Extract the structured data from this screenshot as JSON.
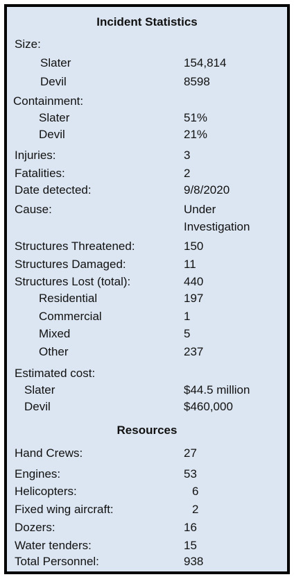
{
  "title": "Incident Statistics",
  "size_label": "Size:",
  "size": [
    {
      "label": "Slater",
      "value": "154,814"
    },
    {
      "label": "Devil",
      "value": "8598"
    }
  ],
  "containment_label": "Containment:",
  "containment": [
    {
      "label": "Slater",
      "value": "51%"
    },
    {
      "label": "Devil",
      "value": "21%"
    }
  ],
  "injuries": {
    "label": "Injuries:",
    "value": "3"
  },
  "fatalities": {
    "label": "Fatalities:",
    "value": "2"
  },
  "date_detected": {
    "label": "Date detected:",
    "value": "9/8/2020"
  },
  "cause": {
    "label": "Cause:",
    "value_line1": "Under",
    "value_line2": "Investigation"
  },
  "structures_threatened": {
    "label": "Structures  Threatened:",
    "value": "150"
  },
  "structures_damaged": {
    "label": "Structures  Damaged:",
    "value": "11"
  },
  "structures_lost": {
    "label": "Structures  Lost (total):",
    "value": "440"
  },
  "structures_lost_breakdown": [
    {
      "label": "Residential",
      "value": "197"
    },
    {
      "label": "Commercial",
      "value": "1"
    },
    {
      "label": "Mixed",
      "value": "5"
    },
    {
      "label": "Other",
      "value": "237"
    }
  ],
  "estimated_cost_label": "Estimated cost:",
  "estimated_cost": [
    {
      "label": "Slater",
      "value": "$44.5 million"
    },
    {
      "label": "Devil",
      "value": "$460,000"
    }
  ],
  "resources_title": "Resources",
  "resources": [
    {
      "label": "Hand Crews:",
      "value": "27"
    },
    {
      "label": "Engines:",
      "value": "53"
    },
    {
      "label": "Helicopters:",
      "value": "6"
    },
    {
      "label": "Fixed wing aircraft:",
      "value": "2"
    },
    {
      "label": "Dozers:",
      "value": "16"
    },
    {
      "label": "Water tenders:",
      "value": "15"
    },
    {
      "label": "Total Personnel:",
      "value": "938"
    }
  ]
}
